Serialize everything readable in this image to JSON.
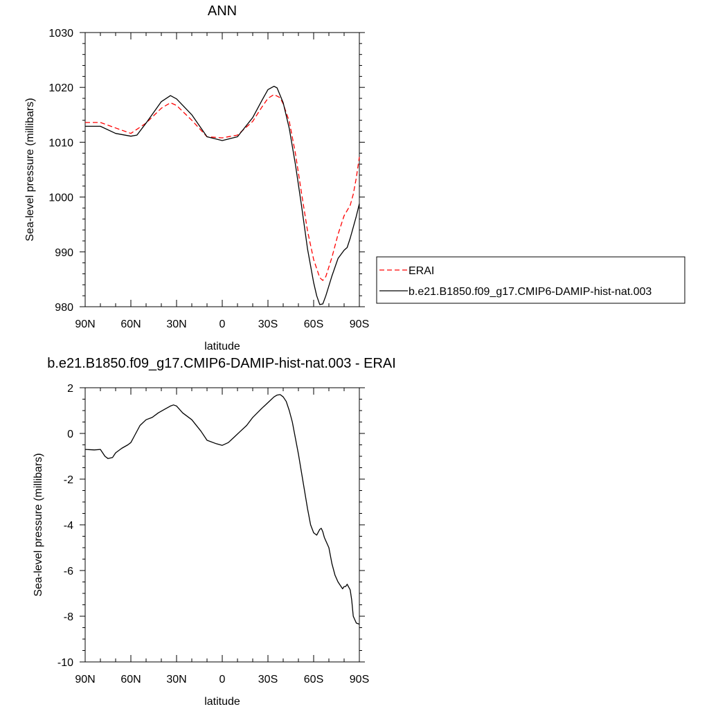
{
  "chart_data": [
    {
      "type": "line",
      "title": "ANN",
      "xlabel": "latitude",
      "ylabel": "Sea-level pressure (millibars)",
      "xlim": [
        -90,
        90
      ],
      "ylim": [
        980,
        1030
      ],
      "x_tick_values": [
        -90,
        -60,
        -30,
        0,
        30,
        60,
        90
      ],
      "x_tick_labels": [
        "90N",
        "60N",
        "30N",
        "0",
        "30S",
        "60S",
        "90S"
      ],
      "y_ticks": [
        980,
        990,
        1000,
        1010,
        1020,
        1030
      ],
      "legend_position": "right",
      "series": [
        {
          "name": "ERAI",
          "color": "#ff0000",
          "dash": "dashed",
          "x": [
            -90,
            -80,
            -70,
            -60,
            -50,
            -40,
            -34,
            -30,
            -20,
            -10,
            0,
            10,
            20,
            26,
            30,
            34,
            38,
            40,
            44,
            48,
            52,
            56,
            60,
            64,
            66,
            68,
            72,
            76,
            80,
            84,
            86,
            88,
            90
          ],
          "y": [
            1013.6,
            1013.6,
            1012.6,
            1011.6,
            1013.5,
            1016.2,
            1017.2,
            1016.7,
            1014.0,
            1011.0,
            1010.8,
            1011.3,
            1013.8,
            1016.4,
            1018.0,
            1018.7,
            1018.1,
            1017.0,
            1013.8,
            1008.0,
            1000.8,
            993.8,
            988.6,
            985.3,
            984.8,
            985.5,
            989.0,
            993.2,
            996.6,
            998.5,
            1000.5,
            1003.5,
            1007.3
          ]
        },
        {
          "name": "b.e21.B1850.f09_g17.CMIP6-DAMIP-hist-nat.003",
          "color": "#000000",
          "dash": "solid",
          "x": [
            -90,
            -80,
            -70,
            -60,
            -56,
            -50,
            -40,
            -34,
            -30,
            -20,
            -10,
            0,
            10,
            20,
            26,
            30,
            34,
            36,
            40,
            44,
            48,
            52,
            56,
            60,
            62,
            64,
            66,
            68,
            72,
            76,
            80,
            82,
            84,
            86,
            88,
            90
          ],
          "y": [
            1012.9,
            1012.9,
            1011.6,
            1011.1,
            1011.3,
            1013.5,
            1017.4,
            1018.5,
            1017.9,
            1015.0,
            1011.0,
            1010.3,
            1011.0,
            1014.5,
            1017.6,
            1019.6,
            1020.2,
            1019.9,
            1017.2,
            1012.5,
            1006.0,
            998.5,
            990.5,
            984.4,
            982.0,
            980.4,
            980.5,
            982.0,
            985.6,
            988.8,
            990.3,
            990.8,
            992.5,
            994.5,
            996.5,
            998.8
          ]
        }
      ]
    },
    {
      "type": "line",
      "title": "b.e21.B1850.f09_g17.CMIP6-DAMIP-hist-nat.003 - ERAI",
      "xlabel": "latitude",
      "ylabel": "Sea-level pressure (millibars)",
      "xlim": [
        -90,
        90
      ],
      "ylim": [
        -10,
        2
      ],
      "x_tick_values": [
        -90,
        -60,
        -30,
        0,
        30,
        60,
        90
      ],
      "x_tick_labels": [
        "90N",
        "60N",
        "30N",
        "0",
        "30S",
        "60S",
        "90S"
      ],
      "y_ticks": [
        -10,
        -8,
        -6,
        -4,
        -2,
        0,
        2
      ],
      "series": [
        {
          "color": "#000000",
          "dash": "solid",
          "x": [
            -90,
            -84,
            -80,
            -77,
            -75,
            -72,
            -70,
            -66,
            -62,
            -60,
            -58,
            -54,
            -50,
            -46,
            -42,
            -38,
            -34,
            -32,
            -30,
            -26,
            -20,
            -14,
            -10,
            -4,
            0,
            4,
            8,
            12,
            16,
            20,
            26,
            30,
            34,
            36,
            38,
            40,
            42,
            44,
            46,
            48,
            50,
            52,
            54,
            56,
            58,
            60,
            62,
            64,
            65,
            66,
            67,
            68,
            70,
            72,
            74,
            76,
            78,
            79,
            80,
            81,
            82,
            84,
            85,
            86,
            88,
            90
          ],
          "y": [
            -0.7,
            -0.72,
            -0.7,
            -1.0,
            -1.1,
            -1.05,
            -0.85,
            -0.65,
            -0.5,
            -0.4,
            -0.15,
            0.35,
            0.6,
            0.7,
            0.9,
            1.05,
            1.2,
            1.25,
            1.2,
            0.9,
            0.6,
            0.1,
            -0.3,
            -0.45,
            -0.52,
            -0.4,
            -0.15,
            0.1,
            0.35,
            0.7,
            1.1,
            1.35,
            1.6,
            1.68,
            1.7,
            1.6,
            1.4,
            1.0,
            0.5,
            -0.2,
            -0.9,
            -1.7,
            -2.5,
            -3.3,
            -4.0,
            -4.35,
            -4.45,
            -4.2,
            -4.15,
            -4.3,
            -4.55,
            -4.7,
            -5.0,
            -5.7,
            -6.2,
            -6.5,
            -6.7,
            -6.8,
            -6.7,
            -6.7,
            -6.6,
            -6.85,
            -7.3,
            -8.0,
            -8.3,
            -8.35
          ]
        }
      ]
    }
  ]
}
